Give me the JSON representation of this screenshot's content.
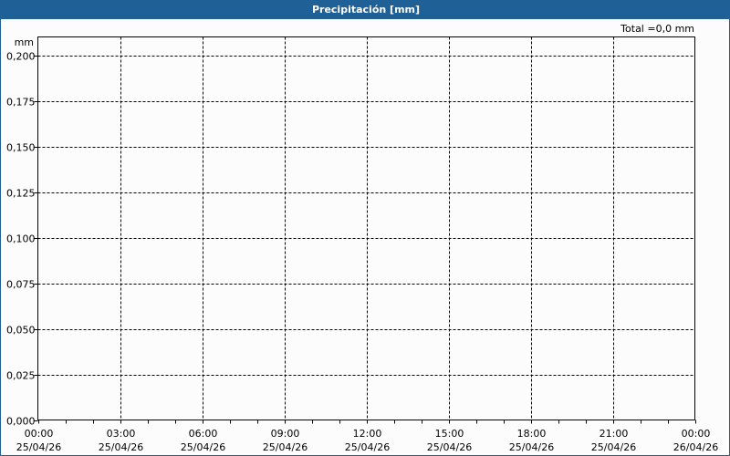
{
  "window": {
    "title": "Precipitación [mm]",
    "total_label": "Total =0,0 mm"
  },
  "colors": {
    "titlebar": "#1f6196",
    "background": "#fcfcfc",
    "grid": "#000000"
  },
  "chart_data": {
    "type": "line",
    "title": "Precipitación [mm]",
    "ylabel": "mm",
    "xlabel": "",
    "ylim": [
      0,
      0.21
    ],
    "yticks": [
      0,
      0.025,
      0.05,
      0.075,
      0.1,
      0.125,
      0.15,
      0.175,
      0.2
    ],
    "ytick_labels": [
      "0,000",
      "0,025",
      "0,050",
      "0,075",
      "0,100",
      "0,125",
      "0,150",
      "0,175",
      "0,200"
    ],
    "xlim_hours": [
      0,
      24
    ],
    "xticks": [
      {
        "time": "00:00",
        "date": "25/04/26"
      },
      {
        "time": "03:00",
        "date": "25/04/26"
      },
      {
        "time": "06:00",
        "date": "25/04/26"
      },
      {
        "time": "09:00",
        "date": "25/04/26"
      },
      {
        "time": "12:00",
        "date": "25/04/26"
      },
      {
        "time": "15:00",
        "date": "25/04/26"
      },
      {
        "time": "18:00",
        "date": "25/04/26"
      },
      {
        "time": "21:00",
        "date": "25/04/26"
      },
      {
        "time": "00:00",
        "date": "26/04/26"
      }
    ],
    "grid": true,
    "grid_style": "dashed",
    "series": [],
    "annotation": "Total =0,0 mm"
  }
}
